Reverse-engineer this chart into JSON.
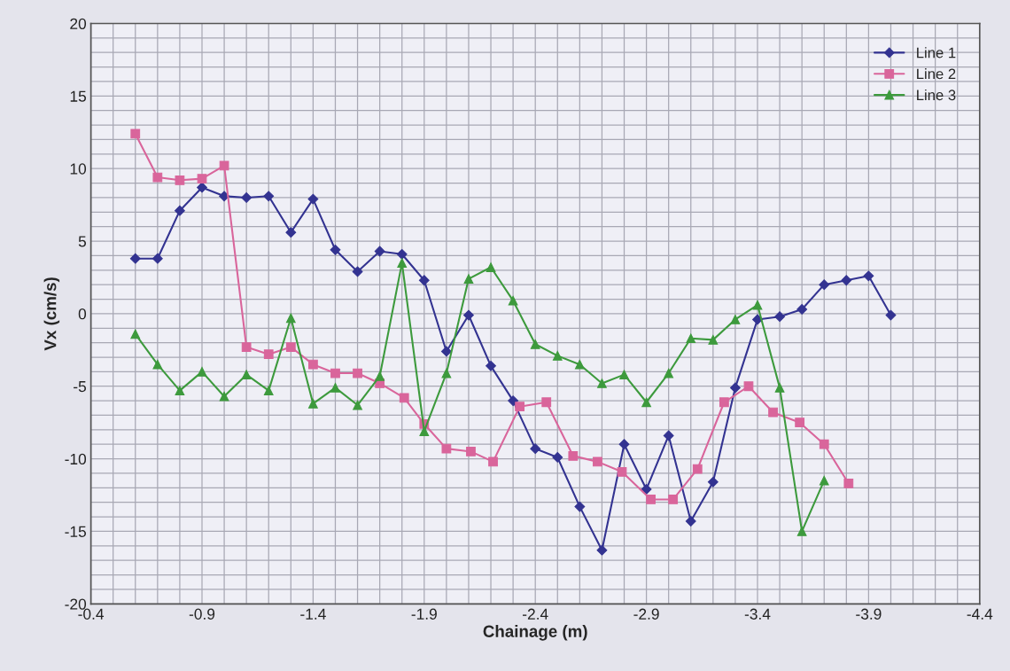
{
  "chart_data": {
    "type": "line",
    "xlabel": "Chainage (m)",
    "ylabel": "Vx (cm/s)",
    "xlim": [
      -0.4,
      -4.4
    ],
    "xticks": [
      -0.4,
      -0.9,
      -1.4,
      -1.9,
      -2.4,
      -2.9,
      -3.4,
      -3.9,
      -4.4
    ],
    "ylim": [
      -20,
      20
    ],
    "yticks": [
      -20,
      -15,
      -10,
      -5,
      0,
      5,
      10,
      15,
      20
    ],
    "grid": true,
    "legend": "top right",
    "series": [
      {
        "name": "Line 1",
        "color": "#333391",
        "marker": "diamond",
        "x": [
          -0.6,
          -0.7,
          -0.8,
          -0.9,
          -1.0,
          -1.1,
          -1.2,
          -1.3,
          -1.4,
          -1.5,
          -1.6,
          -1.7,
          -1.8,
          -1.9,
          -2.0,
          -2.1,
          -2.2,
          -2.3,
          -2.4,
          -2.5,
          -2.6,
          -2.7,
          -2.8,
          -2.9,
          -3.0,
          -3.1,
          -3.2,
          -3.3,
          -3.4,
          -3.5,
          -3.6,
          -3.7,
          -3.8,
          -3.9,
          -4.0
        ],
        "values": [
          3.8,
          3.8,
          7.1,
          8.7,
          8.1,
          8.0,
          8.1,
          5.6,
          7.9,
          4.4,
          2.9,
          4.3,
          4.1,
          2.3,
          -2.6,
          -0.1,
          -3.6,
          -6.0,
          -9.3,
          -9.9,
          -13.3,
          -16.3,
          -9.0,
          -12.1,
          -8.4,
          -14.3,
          -11.6,
          -5.1,
          -0.4,
          -0.2,
          0.3,
          2.0,
          2.3,
          2.6,
          -0.1
        ]
      },
      {
        "name": "Line 2",
        "color": "#d9659b",
        "marker": "square",
        "x": [
          -0.6,
          -0.7,
          -0.8,
          -0.9,
          -1.0,
          -1.1,
          -1.2,
          -1.3,
          -1.4,
          -1.5,
          -1.6,
          -1.7,
          -1.81,
          -1.9,
          -2.0,
          -2.11,
          -2.21,
          -2.33,
          -2.45,
          -2.57,
          -2.68,
          -2.79,
          -2.92,
          -3.02,
          -3.13,
          -3.25,
          -3.36,
          -3.47,
          -3.59,
          -3.7,
          -3.81
        ],
        "values": [
          12.4,
          9.4,
          9.2,
          9.3,
          10.2,
          -2.3,
          -2.8,
          -2.3,
          -3.5,
          -4.1,
          -4.1,
          -4.8,
          -5.8,
          -7.6,
          -9.3,
          -9.5,
          -10.2,
          -6.4,
          -6.1,
          -9.8,
          -10.2,
          -10.9,
          -12.8,
          -12.8,
          -10.7,
          -6.1,
          -5.0,
          -6.8,
          -7.5,
          -9.0,
          -11.7
        ]
      },
      {
        "name": "Line 3",
        "color": "#3d9a3d",
        "marker": "triangle",
        "x": [
          -0.6,
          -0.7,
          -0.8,
          -0.9,
          -1.0,
          -1.1,
          -1.2,
          -1.3,
          -1.4,
          -1.5,
          -1.6,
          -1.7,
          -1.8,
          -1.9,
          -2.0,
          -2.1,
          -2.2,
          -2.3,
          -2.4,
          -2.5,
          -2.6,
          -2.7,
          -2.8,
          -2.9,
          -3.0,
          -3.1,
          -3.2,
          -3.3,
          -3.4,
          -3.5,
          -3.6,
          -3.7
        ],
        "values": [
          -1.4,
          -3.5,
          -5.3,
          -4.0,
          -5.7,
          -4.2,
          -5.3,
          -0.3,
          -6.2,
          -5.1,
          -6.3,
          -4.3,
          3.5,
          -8.1,
          -4.1,
          2.4,
          3.2,
          0.9,
          -2.1,
          -2.9,
          -3.5,
          -4.8,
          -4.2,
          -6.1,
          -4.1,
          -1.7,
          -1.8,
          -0.4,
          0.6,
          -5.1,
          -15.0,
          -11.5
        ]
      }
    ]
  }
}
